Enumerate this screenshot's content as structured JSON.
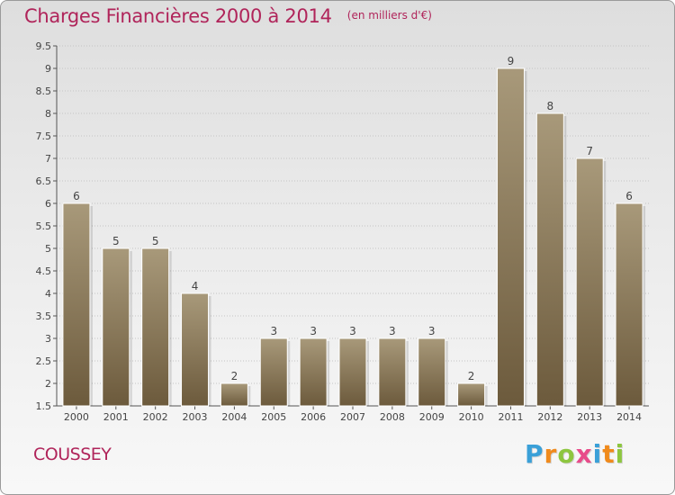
{
  "header": {
    "title": "Charges Financières 2000 à 2014",
    "subtitle": "(en milliers d'€)"
  },
  "footer": {
    "commune": "COUSSEY",
    "brand": "Proxiti",
    "brand_letters": [
      {
        "char": "P",
        "color": "#3aa0d8"
      },
      {
        "char": "r",
        "color": "#f08a1c"
      },
      {
        "char": "o",
        "color": "#8dc63f"
      },
      {
        "char": "x",
        "color": "#e84c8a"
      },
      {
        "char": "i",
        "color": "#3aa0d8"
      },
      {
        "char": "t",
        "color": "#f08a1c"
      },
      {
        "char": "i",
        "color": "#8dc63f"
      }
    ]
  },
  "colors": {
    "bar_top": "#a8997a",
    "bar_bottom": "#6c5a3c",
    "title": "#b0245a",
    "axis": "#555555"
  },
  "chart_data": {
    "type": "bar",
    "title": "Charges Financières 2000 à 2014",
    "subtitle": "(en milliers d'€)",
    "xlabel": "",
    "ylabel": "",
    "categories": [
      "2000",
      "2001",
      "2002",
      "2003",
      "2004",
      "2005",
      "2006",
      "2007",
      "2008",
      "2009",
      "2010",
      "2011",
      "2012",
      "2013",
      "2014"
    ],
    "values": [
      6,
      5,
      5,
      4,
      2,
      3,
      3,
      3,
      3,
      3,
      2,
      9,
      8,
      7,
      6
    ],
    "ylim": [
      1.5,
      9.5
    ],
    "yticks": [
      1.5,
      2,
      2.5,
      3,
      3.5,
      4,
      4.5,
      5,
      5.5,
      6,
      6.5,
      7,
      7.5,
      8,
      8.5,
      9,
      9.5
    ],
    "grid": true
  }
}
